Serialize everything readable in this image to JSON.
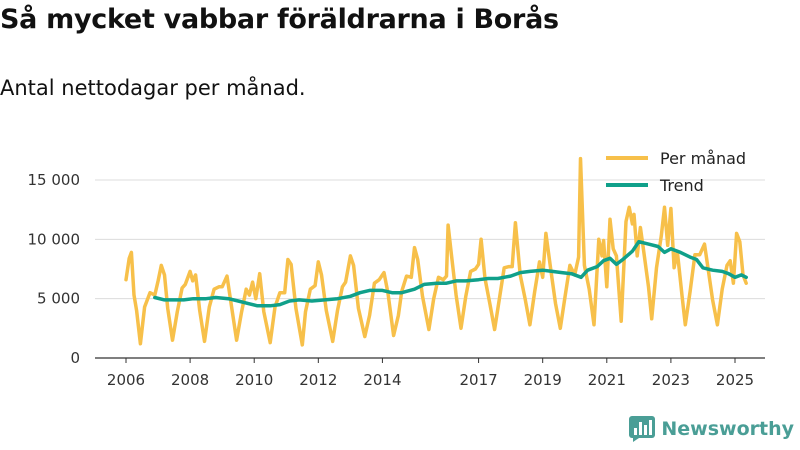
{
  "title": "Så mycket vabbar föräldrarna i Borås",
  "subtitle": "Antal nettodagar per månad.",
  "brand": {
    "name": "Newsworthy",
    "color": "#4a9e96"
  },
  "colors": {
    "monthly": "#f7c04a",
    "trend": "#10a08a",
    "grid": "#dcdcdc",
    "axis": "#333333"
  },
  "chart_data": {
    "type": "line",
    "x_range": [
      2006.0,
      2025.5
    ],
    "ylim": [
      0,
      17000
    ],
    "y_ticks": [
      {
        "value": 0,
        "label": "0"
      },
      {
        "value": 5000,
        "label": "5 000"
      },
      {
        "value": 10000,
        "label": "10 000"
      },
      {
        "value": 15000,
        "label": "15 000"
      }
    ],
    "x_ticks": [
      {
        "value": 2006,
        "label": "2006"
      },
      {
        "value": 2008,
        "label": "2008"
      },
      {
        "value": 2010,
        "label": "2010"
      },
      {
        "value": 2012,
        "label": "2012"
      },
      {
        "value": 2014,
        "label": "2014"
      },
      {
        "value": 2017,
        "label": "2017"
      },
      {
        "value": 2019,
        "label": "2019"
      },
      {
        "value": 2021,
        "label": "2021"
      },
      {
        "value": 2023,
        "label": "2023"
      },
      {
        "value": 2025,
        "label": "2025"
      }
    ],
    "legend_position": "top-right",
    "series": [
      {
        "name": "Per månad",
        "points": [
          [
            2006.0,
            6600
          ],
          [
            2006.1,
            8400
          ],
          [
            2006.17,
            8900
          ],
          [
            2006.25,
            5300
          ],
          [
            2006.33,
            4000
          ],
          [
            2006.45,
            1200
          ],
          [
            2006.58,
            4300
          ],
          [
            2006.75,
            5500
          ],
          [
            2006.9,
            5300
          ],
          [
            2007.0,
            6500
          ],
          [
            2007.1,
            7800
          ],
          [
            2007.2,
            7000
          ],
          [
            2007.3,
            4200
          ],
          [
            2007.45,
            1500
          ],
          [
            2007.6,
            3900
          ],
          [
            2007.75,
            5900
          ],
          [
            2007.85,
            6200
          ],
          [
            2008.0,
            7300
          ],
          [
            2008.08,
            6500
          ],
          [
            2008.17,
            7000
          ],
          [
            2008.3,
            4000
          ],
          [
            2008.45,
            1400
          ],
          [
            2008.6,
            4300
          ],
          [
            2008.75,
            5800
          ],
          [
            2008.9,
            6000
          ],
          [
            2009.0,
            6000
          ],
          [
            2009.15,
            6900
          ],
          [
            2009.3,
            4200
          ],
          [
            2009.45,
            1500
          ],
          [
            2009.6,
            3800
          ],
          [
            2009.75,
            5800
          ],
          [
            2009.85,
            5300
          ],
          [
            2009.95,
            6400
          ],
          [
            2010.05,
            5000
          ],
          [
            2010.17,
            7100
          ],
          [
            2010.3,
            3900
          ],
          [
            2010.5,
            1300
          ],
          [
            2010.65,
            4300
          ],
          [
            2010.8,
            5500
          ],
          [
            2010.95,
            5500
          ],
          [
            2011.05,
            8300
          ],
          [
            2011.15,
            7900
          ],
          [
            2011.3,
            4200
          ],
          [
            2011.5,
            1100
          ],
          [
            2011.6,
            3900
          ],
          [
            2011.75,
            5800
          ],
          [
            2011.9,
            6100
          ],
          [
            2012.0,
            8100
          ],
          [
            2012.1,
            7000
          ],
          [
            2012.25,
            4000
          ],
          [
            2012.45,
            1400
          ],
          [
            2012.6,
            4000
          ],
          [
            2012.75,
            6000
          ],
          [
            2012.85,
            6400
          ],
          [
            2013.0,
            8600
          ],
          [
            2013.1,
            7800
          ],
          [
            2013.25,
            4200
          ],
          [
            2013.45,
            1800
          ],
          [
            2013.6,
            3600
          ],
          [
            2013.75,
            6300
          ],
          [
            2013.9,
            6600
          ],
          [
            2014.05,
            7200
          ],
          [
            2014.17,
            5500
          ],
          [
            2014.35,
            1900
          ],
          [
            2014.5,
            3600
          ],
          [
            2014.6,
            5600
          ],
          [
            2014.75,
            6900
          ],
          [
            2014.9,
            6800
          ],
          [
            2015.0,
            9300
          ],
          [
            2015.1,
            8300
          ],
          [
            2015.25,
            5200
          ],
          [
            2015.45,
            2400
          ],
          [
            2015.6,
            5000
          ],
          [
            2015.75,
            6800
          ],
          [
            2015.9,
            6600
          ],
          [
            2016.0,
            6900
          ],
          [
            2016.05,
            11200
          ],
          [
            2016.15,
            8800
          ],
          [
            2016.3,
            5300
          ],
          [
            2016.45,
            2500
          ],
          [
            2016.6,
            5200
          ],
          [
            2016.75,
            7300
          ],
          [
            2016.9,
            7500
          ],
          [
            2017.0,
            7900
          ],
          [
            2017.08,
            10000
          ],
          [
            2017.2,
            6700
          ],
          [
            2017.35,
            4600
          ],
          [
            2017.5,
            2400
          ],
          [
            2017.65,
            5000
          ],
          [
            2017.8,
            7600
          ],
          [
            2017.95,
            7700
          ],
          [
            2018.05,
            7700
          ],
          [
            2018.15,
            11400
          ],
          [
            2018.3,
            7000
          ],
          [
            2018.45,
            5000
          ],
          [
            2018.6,
            2800
          ],
          [
            2018.75,
            5600
          ],
          [
            2018.9,
            8100
          ],
          [
            2019.0,
            6800
          ],
          [
            2019.1,
            10500
          ],
          [
            2019.25,
            7500
          ],
          [
            2019.4,
            4600
          ],
          [
            2019.55,
            2500
          ],
          [
            2019.7,
            5200
          ],
          [
            2019.85,
            7800
          ],
          [
            2020.0,
            7000
          ],
          [
            2020.12,
            8500
          ],
          [
            2020.18,
            16800
          ],
          [
            2020.3,
            7800
          ],
          [
            2020.45,
            5800
          ],
          [
            2020.6,
            2800
          ],
          [
            2020.75,
            10000
          ],
          [
            2020.85,
            8600
          ],
          [
            2020.9,
            9900
          ],
          [
            2021.0,
            6000
          ],
          [
            2021.1,
            11700
          ],
          [
            2021.2,
            9200
          ],
          [
            2021.3,
            8600
          ],
          [
            2021.45,
            3100
          ],
          [
            2021.6,
            11500
          ],
          [
            2021.7,
            12700
          ],
          [
            2021.8,
            11300
          ],
          [
            2021.85,
            12100
          ],
          [
            2021.95,
            8600
          ],
          [
            2022.05,
            11000
          ],
          [
            2022.15,
            9000
          ],
          [
            2022.3,
            6000
          ],
          [
            2022.4,
            3300
          ],
          [
            2022.55,
            7600
          ],
          [
            2022.7,
            10300
          ],
          [
            2022.8,
            12700
          ],
          [
            2022.9,
            9500
          ],
          [
            2023.0,
            12600
          ],
          [
            2023.1,
            7600
          ],
          [
            2023.2,
            9000
          ],
          [
            2023.35,
            5200
          ],
          [
            2023.45,
            2800
          ],
          [
            2023.6,
            5600
          ],
          [
            2023.75,
            8700
          ],
          [
            2023.9,
            8700
          ],
          [
            2024.05,
            9600
          ],
          [
            2024.15,
            7700
          ],
          [
            2024.3,
            4900
          ],
          [
            2024.45,
            2800
          ],
          [
            2024.6,
            5800
          ],
          [
            2024.75,
            7800
          ],
          [
            2024.85,
            8200
          ],
          [
            2024.95,
            6300
          ],
          [
            2025.05,
            10500
          ],
          [
            2025.15,
            9800
          ],
          [
            2025.25,
            7000
          ],
          [
            2025.35,
            6300
          ]
        ]
      },
      {
        "name": "Trend",
        "points": [
          [
            2006.9,
            5100
          ],
          [
            2007.2,
            4900
          ],
          [
            2007.5,
            4900
          ],
          [
            2007.8,
            4900
          ],
          [
            2008.1,
            5000
          ],
          [
            2008.5,
            5000
          ],
          [
            2008.8,
            5100
          ],
          [
            2009.2,
            5000
          ],
          [
            2009.5,
            4800
          ],
          [
            2009.8,
            4600
          ],
          [
            2010.1,
            4400
          ],
          [
            2010.5,
            4400
          ],
          [
            2010.8,
            4500
          ],
          [
            2011.1,
            4800
          ],
          [
            2011.4,
            4900
          ],
          [
            2011.8,
            4800
          ],
          [
            2012.2,
            4900
          ],
          [
            2012.6,
            5000
          ],
          [
            2013.0,
            5200
          ],
          [
            2013.3,
            5500
          ],
          [
            2013.6,
            5700
          ],
          [
            2014.0,
            5700
          ],
          [
            2014.3,
            5500
          ],
          [
            2014.6,
            5500
          ],
          [
            2015.0,
            5800
          ],
          [
            2015.3,
            6200
          ],
          [
            2015.7,
            6300
          ],
          [
            2016.0,
            6300
          ],
          [
            2016.3,
            6500
          ],
          [
            2016.6,
            6500
          ],
          [
            2017.0,
            6600
          ],
          [
            2017.3,
            6700
          ],
          [
            2017.6,
            6700
          ],
          [
            2018.0,
            6900
          ],
          [
            2018.3,
            7200
          ],
          [
            2018.6,
            7300
          ],
          [
            2019.0,
            7400
          ],
          [
            2019.3,
            7300
          ],
          [
            2019.6,
            7200
          ],
          [
            2019.9,
            7100
          ],
          [
            2020.2,
            6800
          ],
          [
            2020.4,
            7400
          ],
          [
            2020.7,
            7700
          ],
          [
            2020.9,
            8200
          ],
          [
            2021.1,
            8400
          ],
          [
            2021.3,
            7900
          ],
          [
            2021.5,
            8300
          ],
          [
            2021.8,
            9000
          ],
          [
            2022.0,
            9800
          ],
          [
            2022.3,
            9600
          ],
          [
            2022.6,
            9400
          ],
          [
            2022.8,
            8900
          ],
          [
            2023.0,
            9200
          ],
          [
            2023.3,
            8900
          ],
          [
            2023.6,
            8500
          ],
          [
            2023.8,
            8300
          ],
          [
            2024.0,
            7600
          ],
          [
            2024.3,
            7400
          ],
          [
            2024.6,
            7300
          ],
          [
            2024.8,
            7100
          ],
          [
            2025.0,
            6800
          ],
          [
            2025.2,
            7000
          ],
          [
            2025.35,
            6800
          ]
        ]
      }
    ]
  }
}
